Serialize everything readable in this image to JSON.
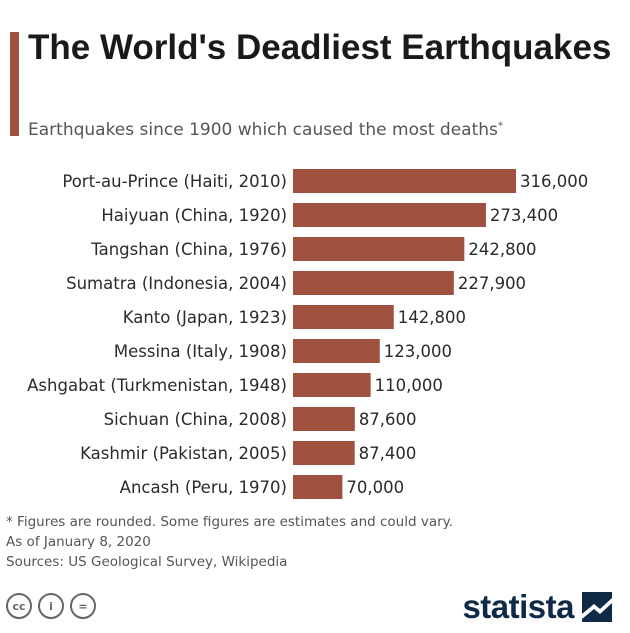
{
  "header": {
    "title": "The World's Deadliest Earthquakes",
    "subtitle": "Earthquakes since 1900 which caused the most deaths",
    "subtitle_mark": "*"
  },
  "colors": {
    "bar": "#a0503e",
    "accent": "#a0503e",
    "brand": "#0e2a47"
  },
  "chart_data": {
    "type": "bar",
    "orientation": "horizontal",
    "categories": [
      "Port-au-Prince (Haiti, 2010)",
      "Haiyuan (China, 1920)",
      "Tangshan (China, 1976)",
      "Sumatra (Indonesia, 2004)",
      "Kanto (Japan, 1923)",
      "Messina (Italy, 1908)",
      "Ashgabat (Turkmenistan, 1948)",
      "Sichuan (China, 2008)",
      "Kashmir (Pakistan, 2005)",
      "Ancash (Peru, 1970)"
    ],
    "values": [
      316000,
      273400,
      242800,
      227900,
      142800,
      123000,
      110000,
      87600,
      87400,
      70000
    ],
    "value_labels": [
      "316,000",
      "273,400",
      "242,800",
      "227,900",
      "142,800",
      "123,000",
      "110,000",
      "87,600",
      "87,400",
      "70,000"
    ],
    "xlim": [
      0,
      316000
    ],
    "grid": false,
    "legend": "none"
  },
  "notes": {
    "footnote": "* Figures are rounded. Some figures are estimates and could vary.",
    "date": "As of January 8, 2020",
    "sources": "Sources: US Geological Survey, Wikipedia"
  },
  "footer": {
    "license_icons": [
      "cc-icon",
      "attribution-icon",
      "no-derivatives-icon"
    ],
    "license_glyphs": [
      "cc",
      "i",
      "="
    ],
    "brand": "statista"
  }
}
